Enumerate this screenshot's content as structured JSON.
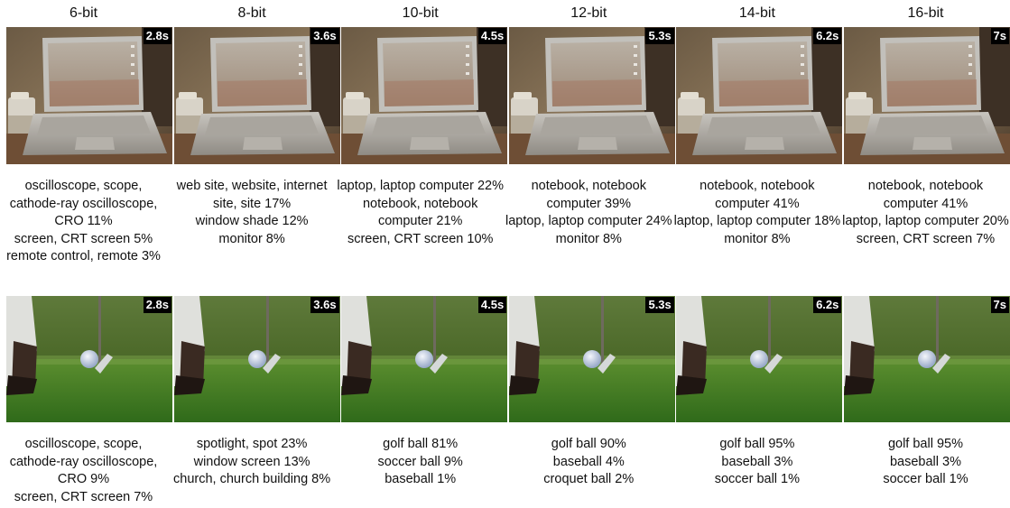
{
  "columns": [
    "6-bit",
    "8-bit",
    "10-bit",
    "12-bit",
    "14-bit",
    "16-bit"
  ],
  "times": [
    "2.8s",
    "3.6s",
    "4.5s",
    "5.3s",
    "6.2s",
    "7s"
  ],
  "rows": [
    {
      "subject": "laptop",
      "captions": [
        [
          "oscilloscope, scope, cathode-ray oscilloscope, CRO 11%",
          "screen, CRT screen 5%",
          "remote control, remote 3%"
        ],
        [
          "web site, website, internet site, site 17%",
          "window shade 12%",
          "monitor 8%"
        ],
        [
          "laptop, laptop computer 22%",
          "notebook, notebook computer 21%",
          "screen, CRT screen 10%"
        ],
        [
          "notebook, notebook computer 39%",
          "laptop, laptop computer 24%",
          "monitor 8%"
        ],
        [
          "notebook, notebook computer 41%",
          "laptop, laptop computer 18%",
          "monitor 8%"
        ],
        [
          "notebook, notebook computer 41%",
          "laptop, laptop computer 20%",
          "screen, CRT screen 7%"
        ]
      ]
    },
    {
      "subject": "golf",
      "captions": [
        [
          "oscilloscope, scope, cathode-ray oscilloscope, CRO 9%",
          "screen, CRT screen 7%"
        ],
        [
          "spotlight, spot 23%",
          "window screen 13%",
          "church, church building 8%"
        ],
        [
          "golf ball 81%",
          "soccer ball 9%",
          "baseball 1%"
        ],
        [
          "golf ball 90%",
          "baseball 4%",
          "croquet ball 2%"
        ],
        [
          "golf ball 95%",
          "baseball 3%",
          "soccer ball 1%"
        ],
        [
          "golf ball 95%",
          "baseball 3%",
          "soccer ball 1%"
        ]
      ]
    }
  ]
}
